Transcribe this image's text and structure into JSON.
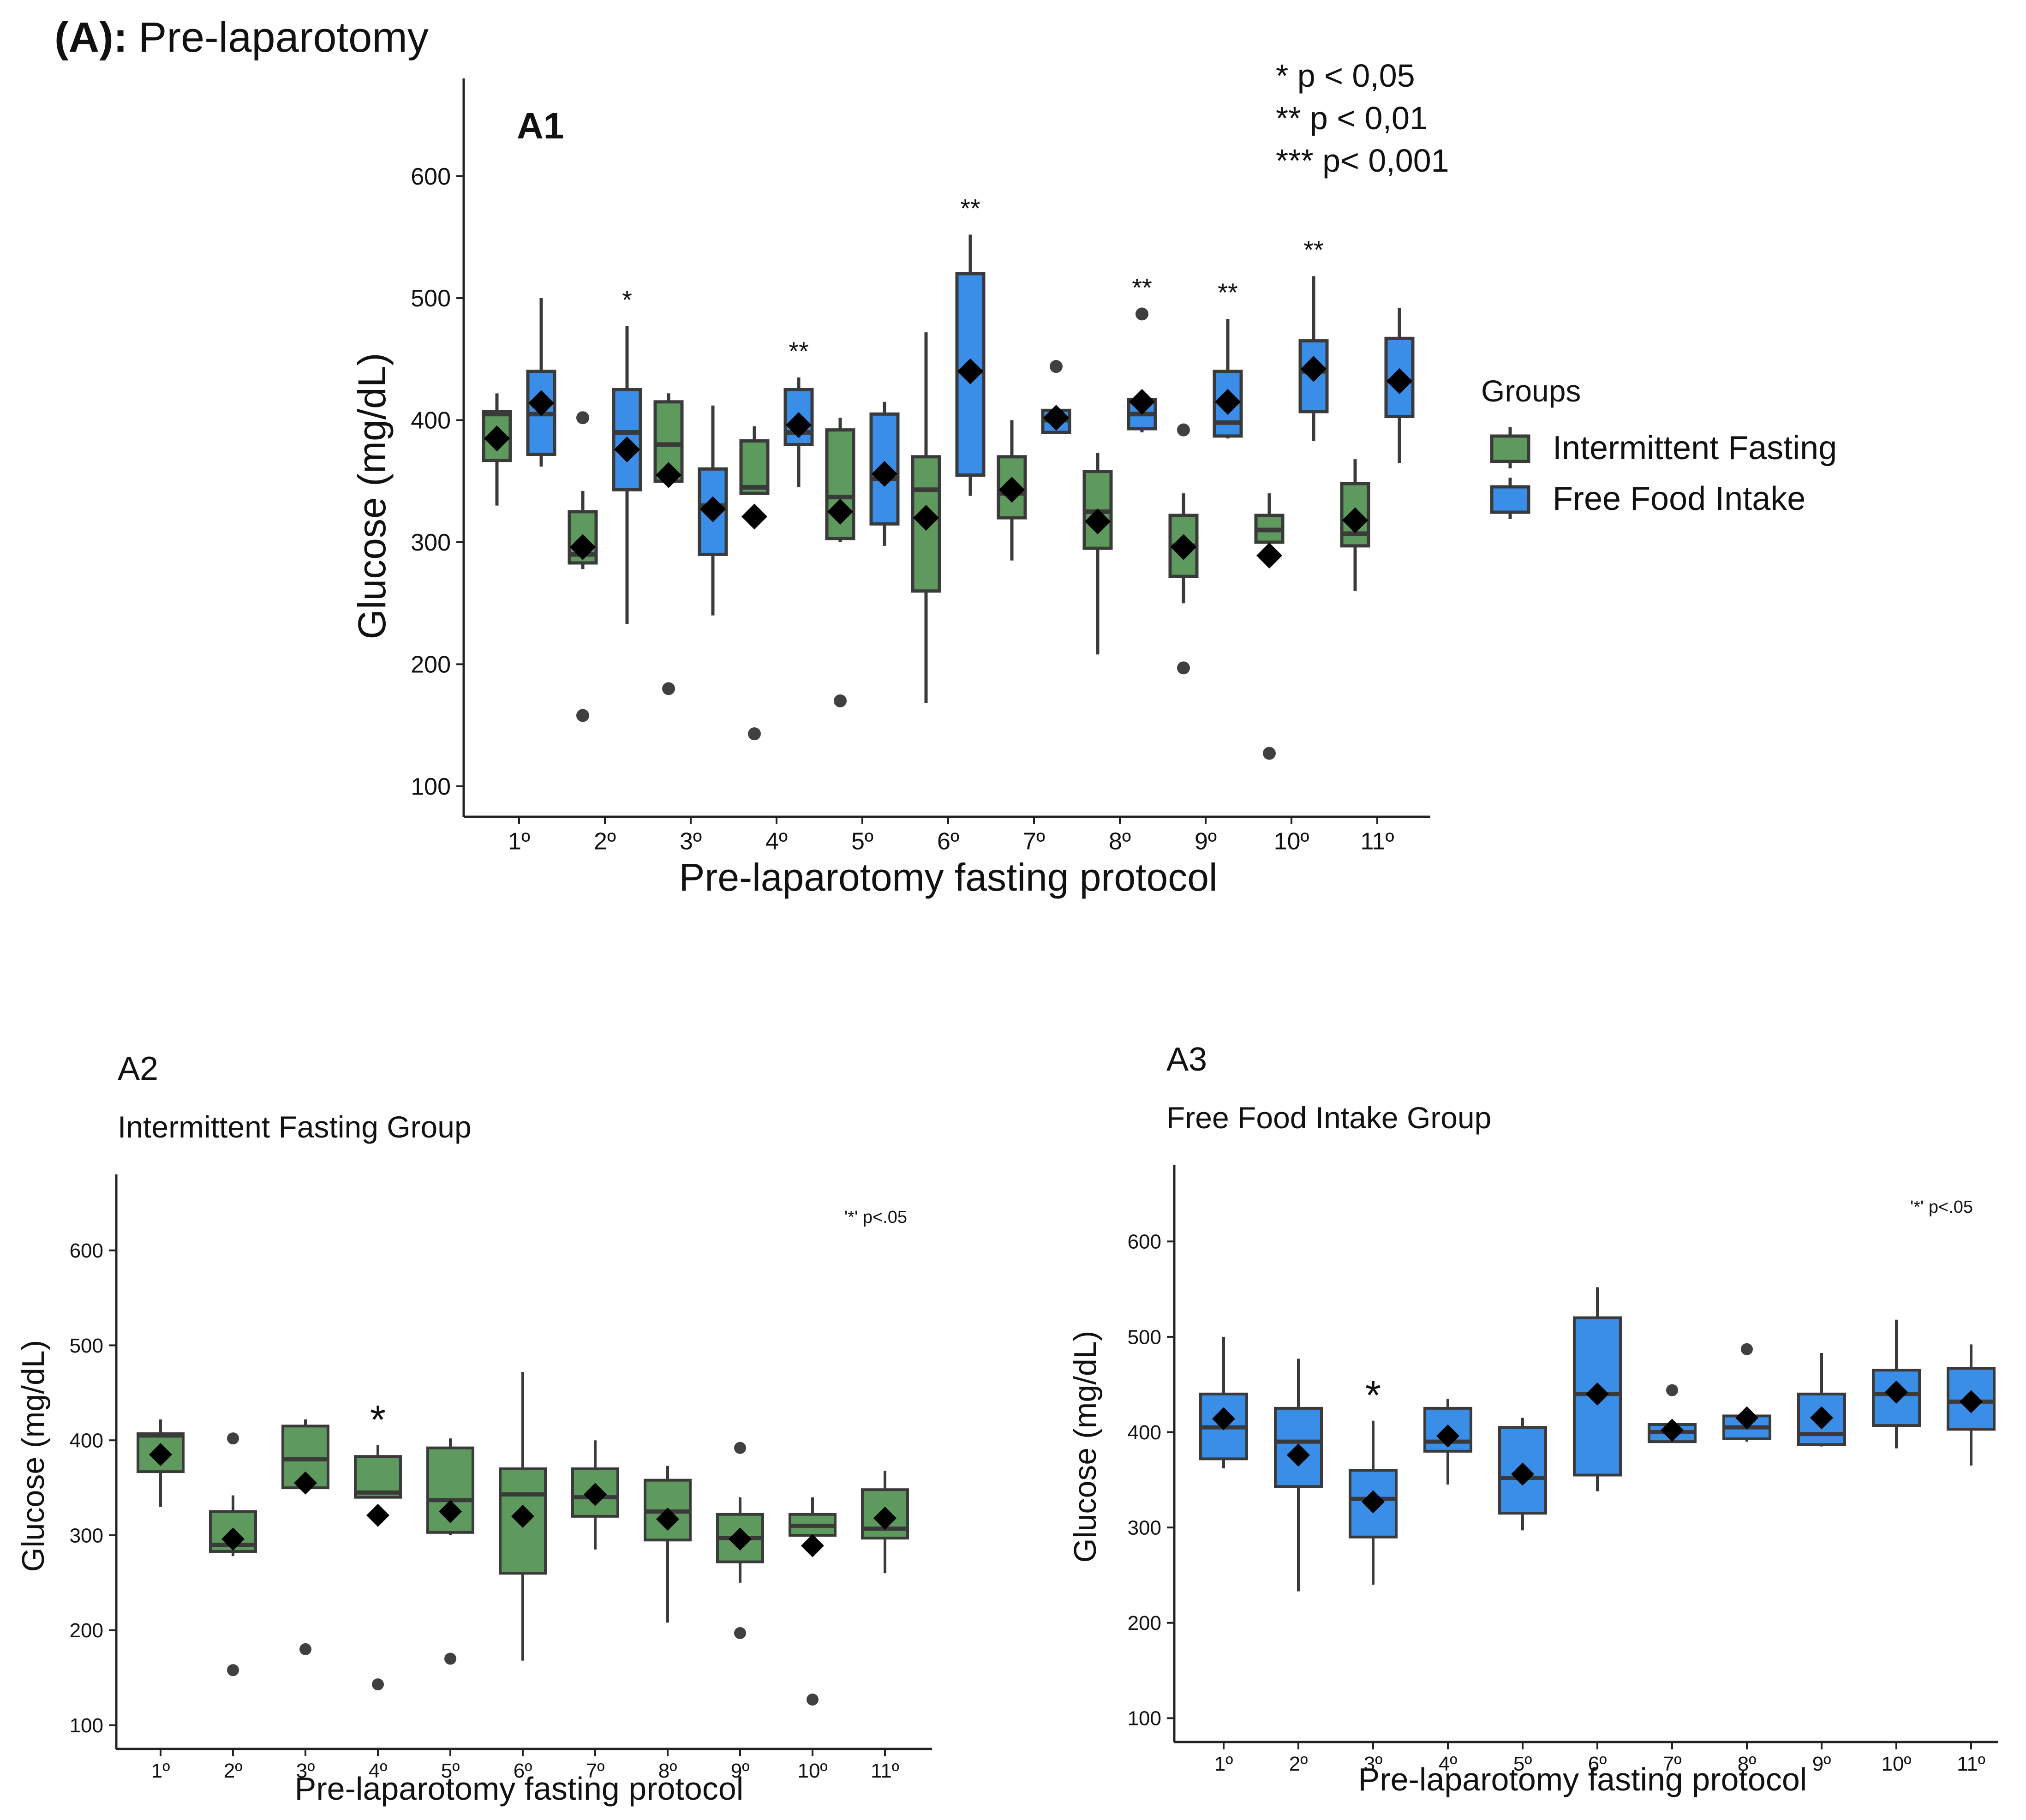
{
  "figure": {
    "panel_label": "(A):",
    "panel_title": "Pre-laparotomy"
  },
  "significance_key": {
    "lines": [
      "* p < 0,05",
      "** p < 0,01",
      "*** p< 0,001"
    ]
  },
  "legend": {
    "title": "Groups",
    "items": [
      {
        "label": "Intermittent Fasting",
        "color": "#5e9a5e"
      },
      {
        "label": "Free Food Intake",
        "color": "#3b8ee8"
      }
    ]
  },
  "colors": {
    "if": "#5e9a5e",
    "ffi": "#3b8ee8",
    "outline": "#3a3a3a",
    "mean": "#000000",
    "outlier": "#404040"
  },
  "chart_data": [
    {
      "id": "A1",
      "type": "boxplot",
      "panel_label": "A1",
      "xlabel": "Pre-laparotomy fasting protocol",
      "ylabel": "Glucose (mg/dL)",
      "ylim": [
        75,
        680
      ],
      "yticks": [
        100,
        200,
        300,
        400,
        500,
        600
      ],
      "categories": [
        "1º",
        "2º",
        "3º",
        "4º",
        "5º",
        "6º",
        "7º",
        "8º",
        "9º",
        "10º",
        "11º"
      ],
      "significance": [
        "",
        "*",
        "",
        "**",
        "",
        "**",
        "",
        "**",
        "**",
        "**",
        ""
      ],
      "series": [
        {
          "name": "Intermittent Fasting",
          "boxes": [
            {
              "min": 330,
              "q1": 367,
              "median": 405,
              "q3": 407,
              "max": 422,
              "mean": 385,
              "outliers": []
            },
            {
              "min": 278,
              "q1": 283,
              "median": 290,
              "q3": 325,
              "max": 342,
              "mean": 296,
              "outliers": [
                158,
                402
              ]
            },
            {
              "min": 345,
              "q1": 350,
              "median": 380,
              "q3": 415,
              "max": 422,
              "mean": 355,
              "outliers": [
                180
              ]
            },
            {
              "min": 340,
              "q1": 340,
              "median": 345,
              "q3": 383,
              "max": 395,
              "mean": 321,
              "outliers": [
                143
              ]
            },
            {
              "min": 300,
              "q1": 303,
              "median": 337,
              "q3": 392,
              "max": 402,
              "mean": 325,
              "outliers": [
                170
              ]
            },
            {
              "min": 168,
              "q1": 260,
              "median": 343,
              "q3": 370,
              "max": 472,
              "mean": 320,
              "outliers": []
            },
            {
              "min": 285,
              "q1": 320,
              "median": 340,
              "q3": 370,
              "max": 400,
              "mean": 343,
              "outliers": []
            },
            {
              "min": 208,
              "q1": 295,
              "median": 325,
              "q3": 358,
              "max": 373,
              "mean": 317,
              "outliers": []
            },
            {
              "min": 250,
              "q1": 272,
              "median": 297,
              "q3": 322,
              "max": 340,
              "mean": 296,
              "outliers": [
                197,
                392
              ]
            },
            {
              "min": 300,
              "q1": 300,
              "median": 310,
              "q3": 322,
              "max": 340,
              "mean": 289,
              "outliers": [
                127
              ]
            },
            {
              "min": 260,
              "q1": 297,
              "median": 307,
              "q3": 348,
              "max": 368,
              "mean": 318,
              "outliers": []
            }
          ]
        },
        {
          "name": "Free Food Intake",
          "boxes": [
            {
              "min": 362,
              "q1": 372,
              "median": 405,
              "q3": 440,
              "max": 500,
              "mean": 414,
              "outliers": []
            },
            {
              "min": 233,
              "q1": 343,
              "median": 390,
              "q3": 425,
              "max": 477,
              "mean": 376,
              "outliers": []
            },
            {
              "min": 240,
              "q1": 290,
              "median": 330,
              "q3": 360,
              "max": 412,
              "mean": 327,
              "outliers": []
            },
            {
              "min": 345,
              "q1": 380,
              "median": 390,
              "q3": 425,
              "max": 435,
              "mean": 396,
              "outliers": []
            },
            {
              "min": 297,
              "q1": 315,
              "median": 352,
              "q3": 405,
              "max": 415,
              "mean": 356,
              "outliers": []
            },
            {
              "min": 338,
              "q1": 355,
              "median": 440,
              "q3": 520,
              "max": 552,
              "mean": 440,
              "outliers": []
            },
            {
              "min": 390,
              "q1": 390,
              "median": 400,
              "q3": 408,
              "max": 408,
              "mean": 402,
              "outliers": [
                444
              ]
            },
            {
              "min": 390,
              "q1": 393,
              "median": 405,
              "q3": 417,
              "max": 417,
              "mean": 415,
              "outliers": [
                487
              ]
            },
            {
              "min": 385,
              "q1": 387,
              "median": 398,
              "q3": 440,
              "max": 483,
              "mean": 415,
              "outliers": []
            },
            {
              "min": 383,
              "q1": 407,
              "median": 440,
              "q3": 465,
              "max": 518,
              "mean": 442,
              "outliers": []
            },
            {
              "min": 365,
              "q1": 403,
              "median": 432,
              "q3": 467,
              "max": 492,
              "mean": 432,
              "outliers": []
            }
          ]
        }
      ]
    },
    {
      "id": "A2",
      "type": "boxplot",
      "panel_label": "A2",
      "subtitle": "Intermittent Fasting Group",
      "note": "'*' p<.05",
      "xlabel": "Pre-laparotomy fasting protocol",
      "ylabel": "Glucose (mg/dL)",
      "ylim": [
        75,
        680
      ],
      "yticks": [
        100,
        200,
        300,
        400,
        500,
        600
      ],
      "categories": [
        "1º",
        "2º",
        "3º",
        "4º",
        "5º",
        "6º",
        "7º",
        "8º",
        "9º",
        "10º",
        "11º"
      ],
      "significance": [
        "",
        "",
        "",
        "*",
        "",
        "",
        "",
        "",
        "",
        "",
        ""
      ],
      "series": [
        {
          "name": "Intermittent Fasting",
          "boxes": [
            {
              "min": 330,
              "q1": 367,
              "median": 405,
              "q3": 407,
              "max": 422,
              "mean": 385,
              "outliers": []
            },
            {
              "min": 278,
              "q1": 283,
              "median": 290,
              "q3": 325,
              "max": 342,
              "mean": 296,
              "outliers": [
                158,
                402
              ]
            },
            {
              "min": 345,
              "q1": 350,
              "median": 380,
              "q3": 415,
              "max": 422,
              "mean": 355,
              "outliers": [
                180
              ]
            },
            {
              "min": 340,
              "q1": 340,
              "median": 345,
              "q3": 383,
              "max": 395,
              "mean": 321,
              "outliers": [
                143
              ]
            },
            {
              "min": 300,
              "q1": 303,
              "median": 337,
              "q3": 392,
              "max": 402,
              "mean": 325,
              "outliers": [
                170
              ]
            },
            {
              "min": 168,
              "q1": 260,
              "median": 343,
              "q3": 370,
              "max": 472,
              "mean": 320,
              "outliers": []
            },
            {
              "min": 285,
              "q1": 320,
              "median": 340,
              "q3": 370,
              "max": 400,
              "mean": 343,
              "outliers": []
            },
            {
              "min": 208,
              "q1": 295,
              "median": 325,
              "q3": 358,
              "max": 373,
              "mean": 317,
              "outliers": []
            },
            {
              "min": 250,
              "q1": 272,
              "median": 297,
              "q3": 322,
              "max": 340,
              "mean": 296,
              "outliers": [
                197,
                392
              ]
            },
            {
              "min": 300,
              "q1": 300,
              "median": 310,
              "q3": 322,
              "max": 340,
              "mean": 289,
              "outliers": [
                127
              ]
            },
            {
              "min": 260,
              "q1": 297,
              "median": 307,
              "q3": 348,
              "max": 368,
              "mean": 318,
              "outliers": []
            }
          ]
        }
      ]
    },
    {
      "id": "A3",
      "type": "boxplot",
      "panel_label": "A3",
      "subtitle": "Free Food Intake Group",
      "note": "'*' p<.05",
      "xlabel": "Pre-laparotomy fasting protocol",
      "ylabel": "Glucose (mg/dL)",
      "ylim": [
        75,
        680
      ],
      "yticks": [
        100,
        200,
        300,
        400,
        500,
        600
      ],
      "categories": [
        "1º",
        "2º",
        "3º",
        "4º",
        "5º",
        "6º",
        "7º",
        "8º",
        "9º",
        "10º",
        "11º"
      ],
      "significance": [
        "",
        "",
        "*",
        "",
        "",
        "",
        "",
        "",
        "",
        "",
        ""
      ],
      "series": [
        {
          "name": "Free Food Intake",
          "boxes": [
            {
              "min": 362,
              "q1": 372,
              "median": 405,
              "q3": 440,
              "max": 500,
              "mean": 414,
              "outliers": []
            },
            {
              "min": 233,
              "q1": 343,
              "median": 390,
              "q3": 425,
              "max": 477,
              "mean": 376,
              "outliers": []
            },
            {
              "min": 240,
              "q1": 290,
              "median": 330,
              "q3": 360,
              "max": 412,
              "mean": 327,
              "outliers": []
            },
            {
              "min": 345,
              "q1": 380,
              "median": 390,
              "q3": 425,
              "max": 435,
              "mean": 396,
              "outliers": []
            },
            {
              "min": 297,
              "q1": 315,
              "median": 352,
              "q3": 405,
              "max": 415,
              "mean": 356,
              "outliers": []
            },
            {
              "min": 338,
              "q1": 355,
              "median": 440,
              "q3": 520,
              "max": 552,
              "mean": 440,
              "outliers": []
            },
            {
              "min": 390,
              "q1": 390,
              "median": 400,
              "q3": 408,
              "max": 408,
              "mean": 402,
              "outliers": [
                444
              ]
            },
            {
              "min": 390,
              "q1": 393,
              "median": 405,
              "q3": 417,
              "max": 417,
              "mean": 415,
              "outliers": [
                487
              ]
            },
            {
              "min": 385,
              "q1": 387,
              "median": 398,
              "q3": 440,
              "max": 483,
              "mean": 415,
              "outliers": []
            },
            {
              "min": 383,
              "q1": 407,
              "median": 440,
              "q3": 465,
              "max": 518,
              "mean": 442,
              "outliers": []
            },
            {
              "min": 365,
              "q1": 403,
              "median": 432,
              "q3": 467,
              "max": 492,
              "mean": 432,
              "outliers": []
            }
          ]
        }
      ]
    }
  ]
}
